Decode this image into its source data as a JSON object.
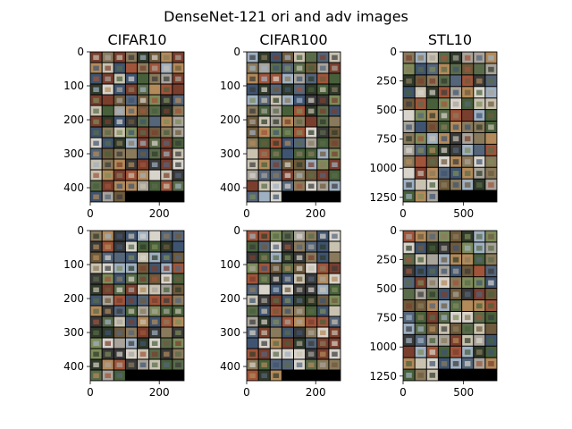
{
  "figure": {
    "title": "DenseNet-121 ori and adv images"
  },
  "panels": [
    {
      "id": "cifar10-ori",
      "title": "CIFAR10",
      "row": "ori",
      "xticks": [
        "0",
        "200"
      ],
      "yticks": [
        "0",
        "100",
        "200",
        "300",
        "400"
      ],
      "xlim": [
        0,
        272
      ],
      "ylim": [
        442,
        0
      ],
      "grid": {
        "cols": 8,
        "rows": 14
      }
    },
    {
      "id": "cifar100-ori",
      "title": "CIFAR100",
      "row": "ori",
      "xticks": [
        "0",
        "200"
      ],
      "yticks": [
        "0",
        "100",
        "200",
        "300",
        "400"
      ],
      "xlim": [
        0,
        272
      ],
      "ylim": [
        442,
        0
      ],
      "grid": {
        "cols": 8,
        "rows": 14
      }
    },
    {
      "id": "stl10-ori",
      "title": "STL10",
      "row": "ori",
      "xticks": [
        "0",
        "500"
      ],
      "yticks": [
        "0",
        "250",
        "500",
        "750",
        "1000",
        "1250"
      ],
      "xlim": [
        0,
        776
      ],
      "ylim": [
        1290,
        0
      ],
      "grid": {
        "cols": 8,
        "rows": 13
      }
    },
    {
      "id": "cifar10-adv",
      "title": "",
      "row": "adv",
      "xticks": [
        "0",
        "200"
      ],
      "yticks": [
        "0",
        "100",
        "200",
        "300",
        "400"
      ],
      "xlim": [
        0,
        272
      ],
      "ylim": [
        442,
        0
      ],
      "grid": {
        "cols": 8,
        "rows": 14
      }
    },
    {
      "id": "cifar100-adv",
      "title": "",
      "row": "adv",
      "xticks": [
        "0",
        "200"
      ],
      "yticks": [
        "0",
        "100",
        "200",
        "300",
        "400"
      ],
      "xlim": [
        0,
        272
      ],
      "ylim": [
        442,
        0
      ],
      "grid": {
        "cols": 8,
        "rows": 14
      }
    },
    {
      "id": "stl10-adv",
      "title": "",
      "row": "adv",
      "xticks": [
        "0",
        "500"
      ],
      "yticks": [
        "0",
        "250",
        "500",
        "750",
        "1000",
        "1250"
      ],
      "xlim": [
        0,
        776
      ],
      "ylim": [
        1290,
        0
      ],
      "grid": {
        "cols": 8,
        "rows": 13
      }
    }
  ],
  "colors": {
    "tile_palette": [
      "#5a6b4a",
      "#8a7a5c",
      "#3f5470",
      "#a9a49b",
      "#6e5a3c",
      "#47603a",
      "#9fb0c2",
      "#7a3e2e",
      "#c9c2b0",
      "#2f3a2a",
      "#b38a5a",
      "#55657a",
      "#d8d4cc",
      "#7d8c5a",
      "#3a3a3a",
      "#a0543a"
    ],
    "grid_gap": "#000000",
    "axis": "#000000",
    "blank_tile": "#000000"
  }
}
